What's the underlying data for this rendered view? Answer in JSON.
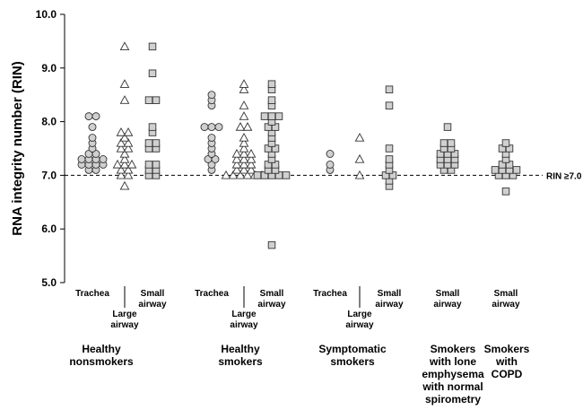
{
  "chart_data": {
    "type": "scatter",
    "ylabel": "RNA integrity number (RIN)",
    "ylim": [
      5.0,
      10.0
    ],
    "yticks": [
      "5.0",
      "6.0",
      "7.0",
      "8.0",
      "9.0",
      "10.0"
    ],
    "reference_line": {
      "value": 7.0,
      "label": "RIN ≥7.0",
      "style": "dashed"
    },
    "marker_fill": "#d0d0d0",
    "columns": [
      {
        "label": [
          "Trachea"
        ],
        "group": 0,
        "marker": "circle",
        "values": [
          8.1,
          8.1,
          7.9,
          7.7,
          7.6,
          7.5,
          7.4,
          7.4,
          7.3,
          7.3,
          7.3,
          7.3,
          7.2,
          7.2,
          7.2,
          7.2,
          7.1,
          7.1
        ]
      },
      {
        "label": [
          "Large",
          "airway"
        ],
        "group": 0,
        "marker": "triangle",
        "values": [
          9.4,
          8.7,
          8.4,
          7.8,
          7.8,
          7.7,
          7.6,
          7.6,
          7.5,
          7.5,
          7.4,
          7.3,
          7.2,
          7.2,
          7.2,
          7.1,
          7.1,
          7.0,
          7.0,
          6.8
        ]
      },
      {
        "label": [
          "Small",
          "airway"
        ],
        "group": 0,
        "marker": "square",
        "values": [
          9.4,
          8.9,
          8.4,
          8.4,
          7.9,
          7.8,
          7.6,
          7.6,
          7.5,
          7.5,
          7.2,
          7.2,
          7.1,
          7.1,
          7.0,
          7.0
        ]
      },
      {
        "label": [
          "Trachea"
        ],
        "group": 1,
        "marker": "circle",
        "values": [
          8.5,
          8.4,
          8.3,
          7.9,
          7.9,
          7.9,
          7.7,
          7.6,
          7.5,
          7.4,
          7.3,
          7.3,
          7.2,
          7.1
        ]
      },
      {
        "label": [
          "Large",
          "airway"
        ],
        "group": 1,
        "marker": "triangle",
        "values": [
          8.7,
          8.6,
          8.3,
          8.1,
          7.9,
          7.9,
          7.7,
          7.6,
          7.5,
          7.4,
          7.4,
          7.4,
          7.3,
          7.3,
          7.3,
          7.2,
          7.2,
          7.2,
          7.1,
          7.1,
          7.1,
          7.0,
          7.0,
          7.0,
          7.0,
          7.0,
          7.0
        ]
      },
      {
        "label": [
          "Small",
          "airway"
        ],
        "group": 1,
        "marker": "square",
        "values": [
          8.7,
          8.6,
          8.4,
          8.3,
          8.1,
          8.1,
          8.1,
          8.0,
          7.9,
          7.9,
          7.8,
          7.7,
          7.6,
          7.5,
          7.5,
          7.4,
          7.3,
          7.2,
          7.2,
          7.1,
          7.1,
          7.0,
          7.0,
          7.0,
          7.0,
          7.0,
          5.7
        ]
      },
      {
        "label": [
          "Trachea"
        ],
        "group": 2,
        "marker": "circle",
        "values": [
          7.4,
          7.2,
          7.1
        ]
      },
      {
        "label": [
          "Large",
          "airway"
        ],
        "group": 2,
        "marker": "triangle",
        "values": [
          7.7,
          7.3,
          7.0
        ]
      },
      {
        "label": [
          "Small",
          "airway"
        ],
        "group": 2,
        "marker": "square",
        "values": [
          8.6,
          8.3,
          7.5,
          7.3,
          7.2,
          7.1,
          7.0,
          7.0,
          6.9,
          6.8
        ]
      },
      {
        "label": [
          "Small",
          "airway"
        ],
        "group": 3,
        "marker": "square",
        "values": [
          7.9,
          7.6,
          7.6,
          7.5,
          7.5,
          7.4,
          7.4,
          7.4,
          7.3,
          7.3,
          7.3,
          7.2,
          7.2,
          7.2,
          7.1,
          7.1
        ]
      },
      {
        "label": [
          "Small",
          "airway"
        ],
        "group": 4,
        "marker": "square",
        "values": [
          7.6,
          7.5,
          7.5,
          7.4,
          7.3,
          7.2,
          7.2,
          7.1,
          7.1,
          7.1,
          7.1,
          7.0,
          7.0,
          7.0,
          6.7
        ]
      }
    ],
    "groups": [
      {
        "label": [
          "Healthy",
          "nonsmokers"
        ]
      },
      {
        "label": [
          "Healthy",
          "smokers"
        ]
      },
      {
        "label": [
          "Symptomatic",
          "smokers"
        ]
      },
      {
        "label": [
          "Smokers",
          "with lone",
          "emphysema",
          "with normal",
          "spirometry"
        ]
      },
      {
        "label": [
          "Smokers",
          "with",
          "COPD"
        ]
      }
    ]
  }
}
